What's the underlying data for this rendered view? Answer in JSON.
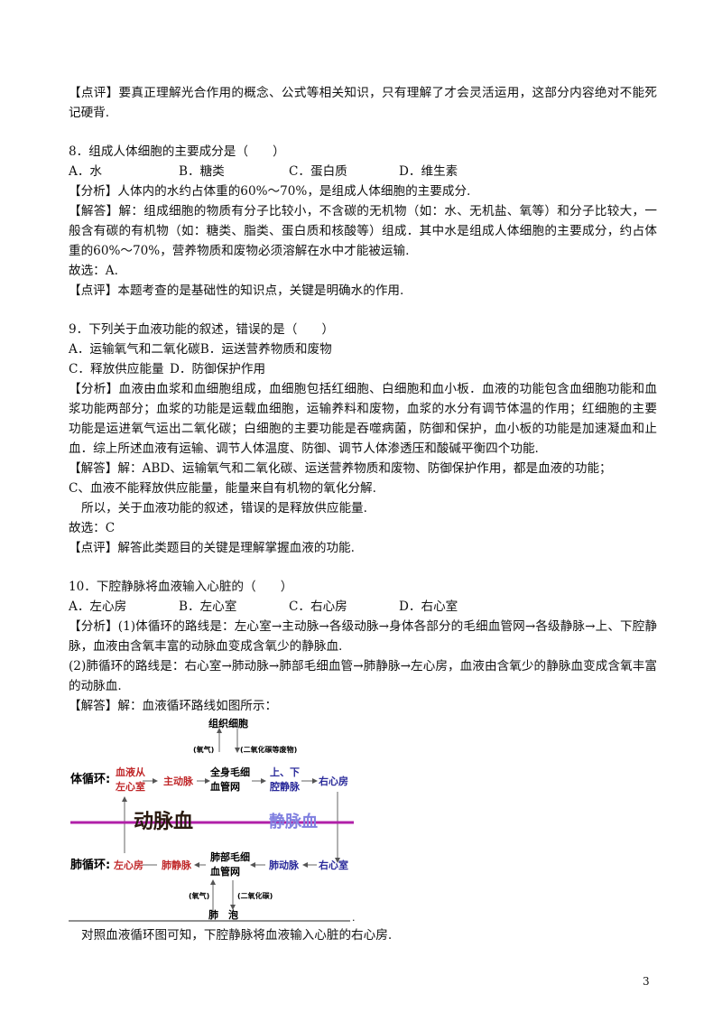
{
  "q7": {
    "comment": "【点评】要真正理解光合作用的概念、公式等相关知识，只有理解了才会灵活运用，这部分内容绝对不能死记硬背."
  },
  "q8": {
    "question": "8．组成人体细胞的主要成分是（　　）",
    "options": [
      "A．水",
      "B．糖类",
      "C．蛋白质",
      "D．维生素"
    ],
    "analysis": "【分析】人体内的水约占体重的60%～70%，是组成人体细胞的主要成分.",
    "answer": "【解答】解：组成细胞的物质有分子比较小，不含碳的无机物（如：水、无机盐、氧等）和分子比较大，一般含有碳的有机物（如：糖类、脂类、蛋白质和核酸等）组成．其中水是组成人体细胞的主要成分，约占体重的60%～70%，营养物质和废物必须溶解在水中才能被运输.",
    "choice": "故选：A.",
    "comment": "【点评】本题考查的是基础性的知识点，关键是明确水的作用."
  },
  "q9": {
    "question": "9．下列关于血液功能的叙述，错误的是（　　）",
    "options_line1": "A．运输氧气和二氧化碳B．运送营养物质和废物",
    "options_line2": [
      "C．释放供应能量",
      "D．防御保护作用"
    ],
    "analysis": "【分析】血液由血浆和血细胞组成，血细胞包括红细胞、白细胞和血小板．血液的功能包含血细胞功能和血浆功能两部分；血浆的功能是运载血细胞，运输养料和废物，血浆的水分有调节体温的作用；红细胞的主要功能是运进氧气运出二氧化碳；白细胞的主要功能是吞噬病菌，防御和保护，血小板的功能是加速凝血和止血．综上所述血液有运输、调节人体温度、防御、调节人体渗透压和酸碱平衡四个功能.",
    "answer1": "【解答】解：ABD、运输氧气和二氧化碳、运送营养物质和废物、防御保护作用，都是血液的功能；",
    "answer2": "C、血液不能释放供应能量，能量来自有机物的氧化分解.",
    "answer3": "所以，关于血液功能的叙述，错误的是释放供应能量.",
    "choice": "故选：C",
    "comment": "【点评】解答此类题目的关键是理解掌握血液的功能."
  },
  "q10": {
    "question": "10．下腔静脉将血液输入心脏的（　　）",
    "options": [
      "A．左心房",
      "B．左心室",
      "C．右心房",
      "D．右心室"
    ],
    "analysis1": "【分析】(1)体循环的路线是：左心室→主动脉→各级动脉→身体各部分的毛细血管网→各级静脉→上、下腔静脉，血液由含氧丰富的动脉血变成含氧少的静脉血.",
    "analysis2": "(2)肺循环的路线是：右心室→肺动脉→肺部毛细血管→肺静脉→左心房，血液由含氧少的静脉血变成含氧丰富的动脉血.",
    "answer": "【解答】解：血液循环路线如图所示：",
    "diagram": {
      "tissue": "组织细胞",
      "o2_top": "(氧气)",
      "co2_top": "(二氧化碳等废物)",
      "systemic_label": "体循环:",
      "sys_start_1": "血液从",
      "sys_start_2": "左心室",
      "aorta": "主动脉",
      "body_cap_1": "全身毛细",
      "body_cap_2": "血管网",
      "vena_1": "上、下",
      "vena_2": "腔静脉",
      "right_atrium": "右心房",
      "arterial": "动脉血",
      "venous": "静脉血",
      "pulmonary_label": "肺循环:",
      "left_atrium": "左心房",
      "pulm_vein": "肺静脉",
      "lung_cap_1": "肺部毛细",
      "lung_cap_2": "血管网",
      "pulm_artery": "肺动脉",
      "right_ventricle": "右心室",
      "o2_bottom": "(氧气)",
      "co2_bottom": "(二氧化碳)",
      "alveoli": "肺　泡",
      "colors": {
        "arterial": "#c0282a",
        "venous": "#2a2a9a",
        "divider": "#b020a8"
      }
    },
    "conclusion": "对照血液循环图可知，下腔静脉将血液输入心脏的右心房."
  },
  "page_number": "3"
}
